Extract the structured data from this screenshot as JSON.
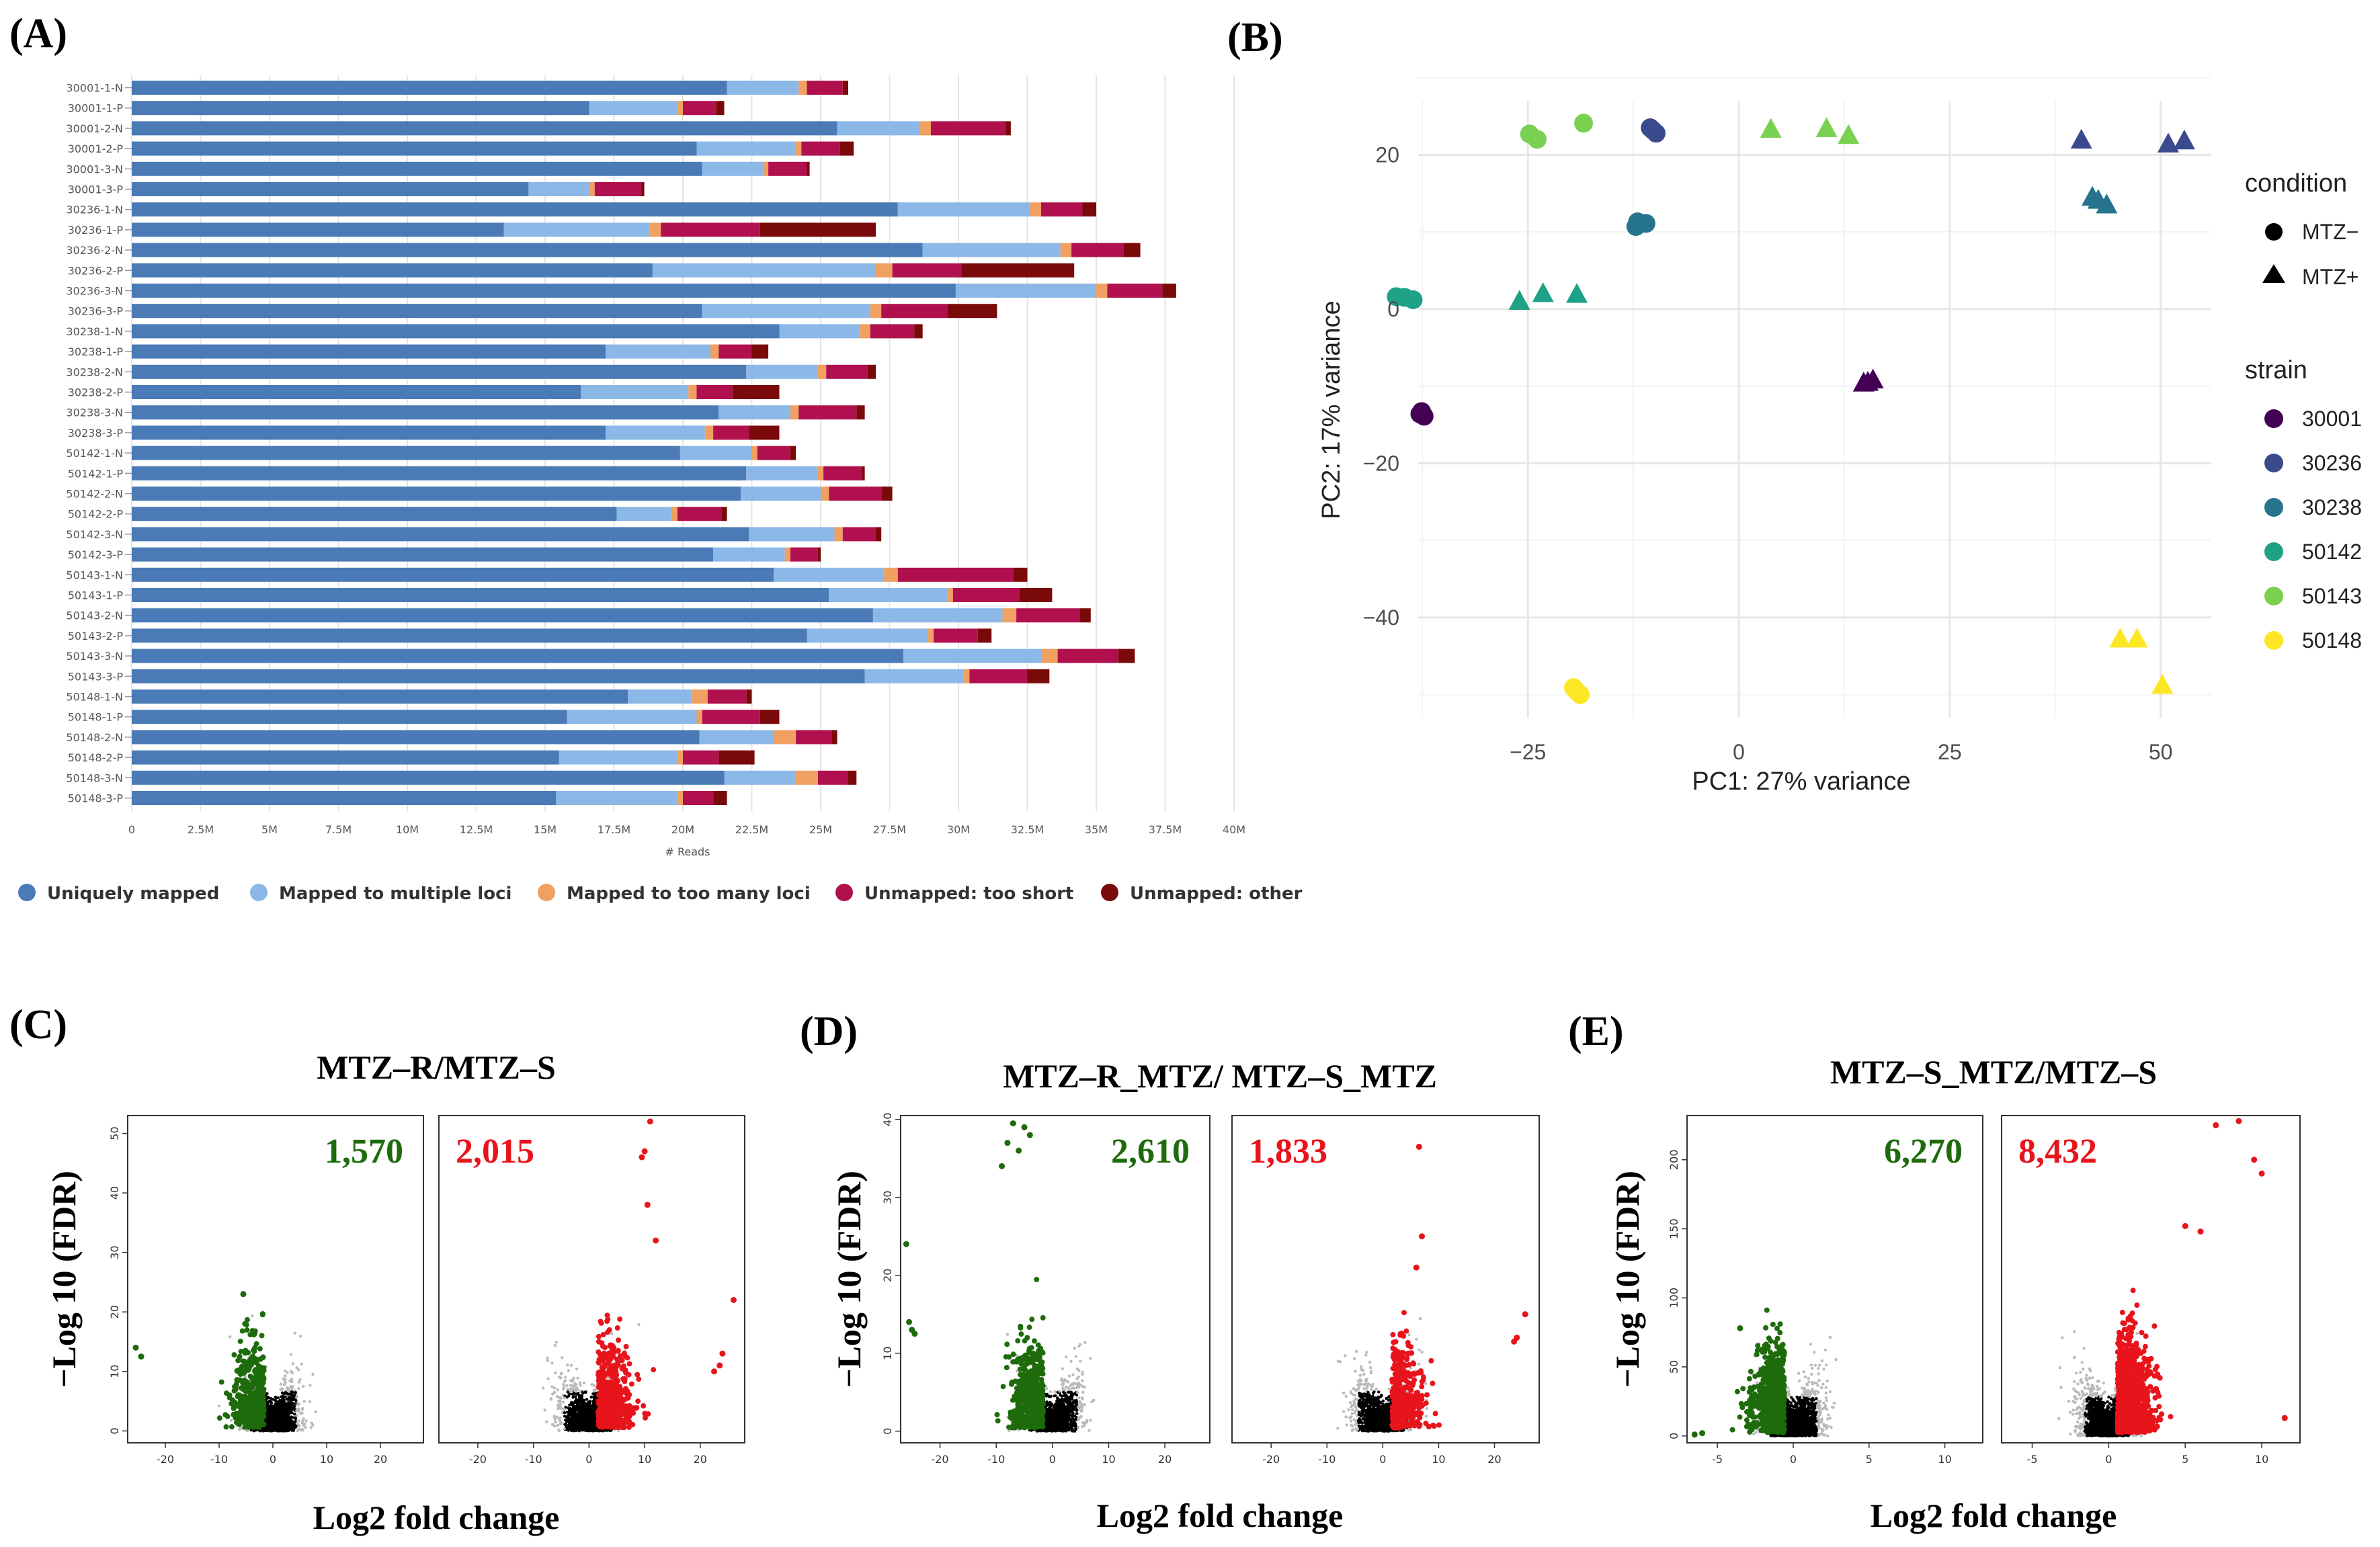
{
  "panel_labels": {
    "A": "(A)",
    "B": "(B)",
    "C": "(C)",
    "D": "(D)",
    "E": "(E)"
  },
  "colors": {
    "uniquely": "#4a7bb6",
    "multiple": "#8cb8e8",
    "toomany": "#f0a060",
    "tooshort": "#b0114e",
    "other": "#7a0a0a",
    "down": "#1e6b0c",
    "up": "#e8141c",
    "ns": "#000000"
  },
  "chart_data": [
    {
      "type": "bar",
      "panel": "A",
      "orientation": "horizontal-stacked",
      "xlabel": "# Reads",
      "xlim": [
        0,
        40000000
      ],
      "xticks": [
        "0",
        "2.5M",
        "5M",
        "7.5M",
        "10M",
        "12.5M",
        "15M",
        "17.5M",
        "20M",
        "22.5M",
        "25M",
        "27.5M",
        "30M",
        "32.5M",
        "35M",
        "37.5M",
        "40M"
      ],
      "categories": [
        "30001-1-N",
        "30001-1-P",
        "30001-2-N",
        "30001-2-P",
        "30001-3-N",
        "30001-3-P",
        "30236-1-N",
        "30236-1-P",
        "30236-2-N",
        "30236-2-P",
        "30236-3-N",
        "30236-3-P",
        "30238-1-N",
        "30238-1-P",
        "30238-2-N",
        "30238-2-P",
        "30238-3-N",
        "30238-3-P",
        "50142-1-N",
        "50142-1-P",
        "50142-2-N",
        "50142-2-P",
        "50142-3-N",
        "50142-3-P",
        "50143-1-N",
        "50143-1-P",
        "50143-2-N",
        "50143-2-P",
        "50143-3-N",
        "50143-3-P",
        "50148-1-N",
        "50148-1-P",
        "50148-2-N",
        "50148-2-P",
        "50148-3-N",
        "50148-3-P"
      ],
      "series": [
        {
          "name": "Uniquely mapped",
          "values": [
            21.6,
            16.6,
            25.6,
            20.5,
            20.7,
            14.4,
            27.8,
            13.5,
            28.7,
            18.9,
            29.9,
            20.7,
            23.5,
            17.2,
            22.3,
            16.3,
            21.3,
            17.2,
            19.9,
            22.3,
            22.1,
            17.6,
            22.4,
            21.1,
            23.3,
            25.3,
            26.9,
            24.5,
            28.0,
            26.6,
            18.0,
            15.8,
            20.6,
            15.5,
            21.5,
            15.4
          ]
        },
        {
          "name": "Mapped to multiple loci",
          "values": [
            2.6,
            3.2,
            3.0,
            3.6,
            2.2,
            2.2,
            4.8,
            5.3,
            5.0,
            8.1,
            5.1,
            6.1,
            2.9,
            3.8,
            2.6,
            3.9,
            2.6,
            3.6,
            2.6,
            2.6,
            2.9,
            2.0,
            3.1,
            2.6,
            4.0,
            4.3,
            4.7,
            4.4,
            5.0,
            3.6,
            2.3,
            4.7,
            2.7,
            4.3,
            2.6,
            4.4
          ]
        },
        {
          "name": "Mapped to too many loci",
          "values": [
            0.3,
            0.2,
            0.4,
            0.2,
            0.2,
            0.2,
            0.4,
            0.4,
            0.4,
            0.6,
            0.4,
            0.4,
            0.4,
            0.3,
            0.3,
            0.3,
            0.3,
            0.3,
            0.2,
            0.2,
            0.3,
            0.2,
            0.3,
            0.2,
            0.5,
            0.2,
            0.5,
            0.2,
            0.6,
            0.2,
            0.6,
            0.2,
            0.8,
            0.2,
            0.8,
            0.2
          ]
        },
        {
          "name": "Unmapped: too short",
          "values": [
            1.3,
            1.2,
            2.7,
            1.4,
            1.4,
            1.7,
            1.5,
            3.6,
            1.9,
            2.5,
            2.0,
            2.4,
            1.6,
            1.2,
            1.5,
            1.3,
            2.1,
            1.3,
            1.2,
            1.4,
            1.9,
            1.6,
            1.2,
            1.0,
            4.2,
            2.4,
            2.3,
            1.6,
            2.2,
            2.1,
            1.4,
            2.1,
            1.3,
            1.3,
            1.1,
            1.1
          ]
        },
        {
          "name": "Unmapped: other",
          "values": [
            0.2,
            0.3,
            0.2,
            0.5,
            0.1,
            0.1,
            0.5,
            4.2,
            0.6,
            4.1,
            0.5,
            1.8,
            0.3,
            0.6,
            0.3,
            1.7,
            0.3,
            1.1,
            0.2,
            0.1,
            0.4,
            0.2,
            0.2,
            0.1,
            0.5,
            1.2,
            0.4,
            0.5,
            0.6,
            0.8,
            0.2,
            0.7,
            0.2,
            1.3,
            0.3,
            0.5
          ]
        }
      ],
      "legend": [
        "Uniquely mapped",
        "Mapped to multiple loci",
        "Mapped to too many loci",
        "Unmapped: too short",
        "Unmapped: other"
      ]
    },
    {
      "type": "scatter",
      "panel": "B",
      "xlabel": "PC1: 27% variance",
      "ylabel": "PC2: 17% variance",
      "xlim": [
        -38,
        56
      ],
      "ylim": [
        -53,
        27
      ],
      "xticks": [
        -25,
        0,
        25,
        50
      ],
      "yticks": [
        20,
        0,
        -20,
        -40
      ],
      "xtick_labels": [
        "−25",
        "0",
        "25",
        "50"
      ],
      "ytick_labels": [
        "20",
        "0",
        "−20",
        "−40"
      ],
      "legend_condition": {
        "title": "condition",
        "items": [
          "MTZ−",
          "MTZ+"
        ]
      },
      "legend_strain": {
        "title": "strain",
        "items": [
          "30001",
          "30236",
          "30238",
          "50142",
          "50143",
          "50148"
        ]
      },
      "strain_colors": {
        "30001": "#440154",
        "30236": "#3b4a8c",
        "30238": "#26738e",
        "50142": "#1fa187",
        "50143": "#7ad151",
        "50148": "#fde725"
      },
      "points": [
        {
          "x": -37.6,
          "y": -13.3,
          "strain": "30001",
          "condition": "MTZ-"
        },
        {
          "x": -37.3,
          "y": -13.9,
          "strain": "30001",
          "condition": "MTZ-"
        },
        {
          "x": -37.8,
          "y": -13.6,
          "strain": "30001",
          "condition": "MTZ-"
        },
        {
          "x": 14.8,
          "y": -9.6,
          "strain": "30001",
          "condition": "MTZ+"
        },
        {
          "x": 15.9,
          "y": -9.2,
          "strain": "30001",
          "condition": "MTZ+"
        },
        {
          "x": 15.3,
          "y": -9.5,
          "strain": "30001",
          "condition": "MTZ+"
        },
        {
          "x": -10.5,
          "y": 23.5,
          "strain": "30236",
          "condition": "MTZ-"
        },
        {
          "x": -9.8,
          "y": 22.8,
          "strain": "30236",
          "condition": "MTZ-"
        },
        {
          "x": -10.2,
          "y": 23.2,
          "strain": "30236",
          "condition": "MTZ-"
        },
        {
          "x": 40.6,
          "y": 21.9,
          "strain": "30236",
          "condition": "MTZ+"
        },
        {
          "x": 50.9,
          "y": 21.4,
          "strain": "30236",
          "condition": "MTZ+"
        },
        {
          "x": 52.8,
          "y": 21.8,
          "strain": "30236",
          "condition": "MTZ+"
        },
        {
          "x": -12.2,
          "y": 10.7,
          "strain": "30238",
          "condition": "MTZ-"
        },
        {
          "x": -11.0,
          "y": 11.1,
          "strain": "30238",
          "condition": "MTZ-"
        },
        {
          "x": -12.0,
          "y": 11.3,
          "strain": "30238",
          "condition": "MTZ-"
        },
        {
          "x": 41.9,
          "y": 14.5,
          "strain": "30238",
          "condition": "MTZ+"
        },
        {
          "x": 43.6,
          "y": 13.5,
          "strain": "30238",
          "condition": "MTZ+"
        },
        {
          "x": 42.6,
          "y": 14.1,
          "strain": "30238",
          "condition": "MTZ+"
        },
        {
          "x": -40.6,
          "y": 1.6,
          "strain": "50142",
          "condition": "MTZ-"
        },
        {
          "x": -38.6,
          "y": 1.2,
          "strain": "50142",
          "condition": "MTZ-"
        },
        {
          "x": -39.6,
          "y": 1.5,
          "strain": "50142",
          "condition": "MTZ-"
        },
        {
          "x": -26.0,
          "y": 1.0,
          "strain": "50142",
          "condition": "MTZ+"
        },
        {
          "x": -23.2,
          "y": 2.0,
          "strain": "50142",
          "condition": "MTZ+"
        },
        {
          "x": -19.2,
          "y": 1.9,
          "strain": "50142",
          "condition": "MTZ+"
        },
        {
          "x": -24.8,
          "y": 22.7,
          "strain": "50143",
          "condition": "MTZ-"
        },
        {
          "x": -23.9,
          "y": 22.0,
          "strain": "50143",
          "condition": "MTZ-"
        },
        {
          "x": -18.4,
          "y": 24.1,
          "strain": "50143",
          "condition": "MTZ-"
        },
        {
          "x": 3.8,
          "y": 23.3,
          "strain": "50143",
          "condition": "MTZ+"
        },
        {
          "x": 10.4,
          "y": 23.4,
          "strain": "50143",
          "condition": "MTZ+"
        },
        {
          "x": 13.0,
          "y": 22.5,
          "strain": "50143",
          "condition": "MTZ+"
        },
        {
          "x": -19.6,
          "y": -49.1,
          "strain": "50148",
          "condition": "MTZ-"
        },
        {
          "x": -18.8,
          "y": -50.0,
          "strain": "50148",
          "condition": "MTZ-"
        },
        {
          "x": -19.2,
          "y": -49.6,
          "strain": "50148",
          "condition": "MTZ-"
        },
        {
          "x": 45.2,
          "y": -42.8,
          "strain": "50148",
          "condition": "MTZ+"
        },
        {
          "x": 47.2,
          "y": -42.8,
          "strain": "50148",
          "condition": "MTZ+"
        },
        {
          "x": 50.2,
          "y": -48.8,
          "strain": "50148",
          "condition": "MTZ+"
        }
      ]
    },
    {
      "type": "scatter",
      "panel": "C",
      "subtype": "volcano",
      "title": "MTZ–R/MTZ–S",
      "xlabel": "Log2 fold change",
      "ylabel": "−Log 10 (FDR)",
      "xlim": [
        -27,
        28
      ],
      "ylim": [
        -2,
        53
      ],
      "xticks": [
        -20,
        -10,
        0,
        10,
        20
      ],
      "yticks": [
        0,
        10,
        20,
        30,
        40,
        50
      ],
      "down_count": "1,570",
      "up_count": "2,015",
      "n_background": 1600,
      "n_down_shown": 420,
      "n_up_shown": 520,
      "outliers_down": [
        {
          "x": -25.5,
          "y": 14
        },
        {
          "x": -24.5,
          "y": 12.5
        },
        {
          "x": -5.5,
          "y": 23
        }
      ],
      "outliers_up": [
        {
          "x": 9.5,
          "y": 46
        },
        {
          "x": 10.0,
          "y": 47
        },
        {
          "x": 11,
          "y": 52
        },
        {
          "x": 10.5,
          "y": 38
        },
        {
          "x": 12,
          "y": 32
        },
        {
          "x": 26,
          "y": 22
        },
        {
          "x": 24,
          "y": 13
        },
        {
          "x": 23.5,
          "y": 11
        },
        {
          "x": 22.5,
          "y": 10
        }
      ]
    },
    {
      "type": "scatter",
      "panel": "D",
      "subtype": "volcano",
      "title": "MTZ–R_MTZ/ MTZ–S_MTZ",
      "xlabel": "Log2 fold change",
      "ylabel": "−Log 10 (FDR)",
      "xlim": [
        -27,
        28
      ],
      "ylim": [
        -1.5,
        40.5
      ],
      "xticks": [
        -20,
        -10,
        0,
        10,
        20
      ],
      "yticks": [
        0,
        10,
        20,
        30,
        40
      ],
      "down_count": "2,610",
      "up_count": "1,833",
      "n_background": 1500,
      "n_down_shown": 520,
      "n_up_shown": 380,
      "outliers_down": [
        {
          "x": -26,
          "y": 24
        },
        {
          "x": -25.5,
          "y": 14
        },
        {
          "x": -25,
          "y": 13
        },
        {
          "x": -24.5,
          "y": 12.5
        },
        {
          "x": -7,
          "y": 39.5
        },
        {
          "x": -5,
          "y": 39
        },
        {
          "x": -8,
          "y": 37
        },
        {
          "x": -4,
          "y": 38
        },
        {
          "x": -9,
          "y": 34
        },
        {
          "x": -6,
          "y": 36
        }
      ],
      "outliers_up": [
        {
          "x": 6.5,
          "y": 36.5
        },
        {
          "x": 7,
          "y": 25
        },
        {
          "x": 6,
          "y": 21
        },
        {
          "x": 25.5,
          "y": 15
        },
        {
          "x": 24,
          "y": 12
        },
        {
          "x": 23.5,
          "y": 11.5
        }
      ]
    },
    {
      "type": "scatter",
      "panel": "E",
      "subtype": "volcano",
      "title": "MTZ–S_MTZ/MTZ–S",
      "xlabel": "Log2 fold change",
      "ylabel": "−Log 10 (FDR)",
      "xlim": [
        -7,
        12.5
      ],
      "ylim": [
        -5,
        232
      ],
      "xticks": [
        -5,
        0,
        5,
        10
      ],
      "yticks": [
        0,
        50,
        100,
        150,
        200
      ],
      "down_count": "6,270",
      "up_count": "8,432",
      "n_background": 2400,
      "n_down_shown": 700,
      "n_up_shown": 1400,
      "outliers_down": [
        {
          "x": -6.5,
          "y": 1
        },
        {
          "x": -6,
          "y": 2
        },
        {
          "x": -3.5,
          "y": 78
        }
      ],
      "outliers_up": [
        {
          "x": 8.5,
          "y": 228
        },
        {
          "x": 7,
          "y": 225
        },
        {
          "x": 9.5,
          "y": 200
        },
        {
          "x": 10,
          "y": 190
        },
        {
          "x": 6,
          "y": 148
        },
        {
          "x": 5,
          "y": 152
        },
        {
          "x": 11.5,
          "y": 13
        }
      ]
    }
  ]
}
